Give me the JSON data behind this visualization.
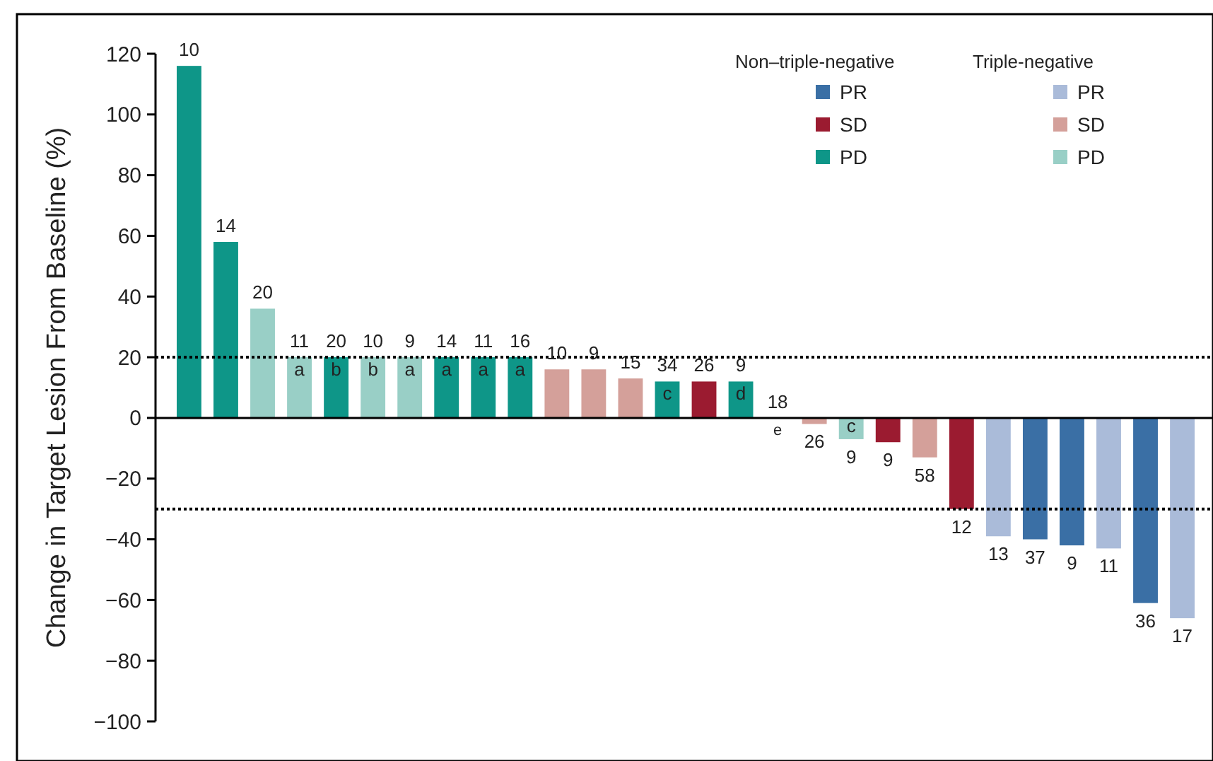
{
  "chart_data": {
    "type": "bar",
    "ylabel": "Change in Target Lesion From Baseline (%)",
    "categories": [
      null,
      null,
      null,
      null,
      null,
      null,
      null,
      null,
      null,
      null,
      null,
      null,
      null,
      null,
      null,
      null,
      null,
      null,
      null,
      null,
      null,
      null,
      null,
      null,
      null,
      null,
      null,
      null
    ],
    "ylim": [
      -100,
      120
    ],
    "yticks": [
      -100,
      -80,
      -60,
      -40,
      -20,
      0,
      20,
      40,
      60,
      80,
      100,
      120
    ],
    "legend": "top right",
    "legend_title": [
      "Non–triple-negative",
      "Triple-negative"
    ],
    "series": [
      {
        "name": "PR",
        "color": "#3a6fa5",
        "values": [
          null,
          null,
          null,
          null,
          null,
          null,
          null,
          null,
          null,
          null,
          null,
          null,
          null,
          null,
          null,
          null,
          null,
          null,
          null,
          null,
          null,
          null,
          null,
          -40,
          -42,
          null,
          -61,
          null
        ]
      },
      {
        "name": "SD",
        "color": "#9b1b30",
        "values": [
          null,
          null,
          null,
          null,
          null,
          null,
          null,
          null,
          null,
          null,
          null,
          null,
          null,
          null,
          12,
          null,
          null,
          null,
          null,
          -8,
          null,
          -30,
          null,
          null,
          null,
          null,
          null,
          null
        ]
      },
      {
        "name": "PD",
        "color": "#0e9688",
        "values": [
          116,
          58,
          null,
          null,
          20,
          null,
          null,
          20,
          20,
          20,
          null,
          null,
          null,
          12,
          null,
          12,
          0,
          null,
          null,
          null,
          null,
          null,
          null,
          null,
          null,
          null,
          null,
          null
        ]
      },
      {
        "name": "PR",
        "color": "#aabbd9",
        "values": [
          null,
          null,
          null,
          null,
          null,
          null,
          null,
          null,
          null,
          null,
          null,
          null,
          null,
          null,
          null,
          null,
          null,
          null,
          null,
          null,
          null,
          null,
          -39,
          null,
          null,
          -43,
          null,
          -66
        ]
      },
      {
        "name": "SD",
        "color": "#d4a09a",
        "values": [
          null,
          null,
          null,
          null,
          null,
          null,
          null,
          null,
          null,
          null,
          16,
          16,
          13,
          null,
          null,
          null,
          null,
          -2,
          null,
          null,
          -13,
          null,
          null,
          null,
          null,
          null,
          null,
          null
        ]
      },
      {
        "name": "PD",
        "color": "#99cfc6",
        "values": [
          null,
          null,
          36,
          20,
          null,
          20,
          20,
          null,
          null,
          null,
          null,
          null,
          null,
          null,
          null,
          null,
          null,
          null,
          -7,
          null,
          null,
          null,
          null,
          null,
          null,
          null,
          null,
          null
        ]
      }
    ],
    "value_labels": [
      "10",
      "14",
      "20",
      "11\na",
      "20\nb",
      "10\nb",
      "9\na",
      "14\na",
      "11\na",
      "16\na",
      "10",
      "9",
      "15",
      "34\nc",
      "26",
      "9\nd",
      "18\ne",
      "26",
      "9\nc",
      "9",
      "58",
      "12",
      "13",
      "37",
      "9",
      "11",
      "36",
      "17"
    ],
    "ref_lines": [
      {
        "axis": "y",
        "value": 20,
        "line_style": "dotted"
      },
      {
        "axis": "y",
        "value": -30,
        "line_style": "dotted"
      }
    ]
  }
}
